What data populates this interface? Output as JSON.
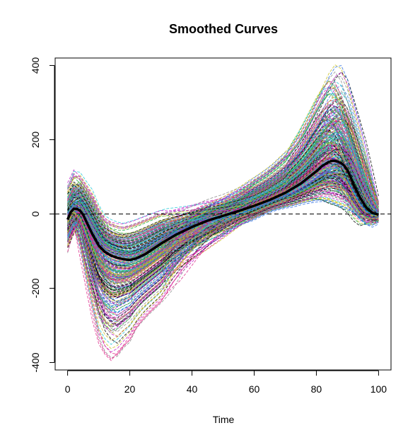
{
  "chart_data": {
    "type": "line",
    "title": "Smoothed Curves",
    "xlabel": "Time",
    "ylabel": "",
    "xlim": [
      -4,
      104
    ],
    "ylim": [
      -420,
      420
    ],
    "x_ticks": [
      0,
      20,
      40,
      60,
      80,
      100
    ],
    "x_tick_labels": [
      "0",
      "20",
      "40",
      "60",
      "80",
      "100"
    ],
    "y_ticks": [
      -400,
      -200,
      0,
      200,
      400
    ],
    "y_tick_labels": [
      "-400",
      "-200",
      "0",
      "200",
      "400"
    ],
    "grid": false,
    "legend": "none",
    "reference_line": {
      "y": 0,
      "style": "dashed",
      "color": "#000000"
    },
    "mean_curve": {
      "name": "mean",
      "color": "#000000",
      "x": [
        0,
        1,
        2,
        3,
        4,
        5,
        6,
        8,
        10,
        12,
        14,
        16,
        18,
        20,
        22,
        25,
        30,
        35,
        40,
        45,
        50,
        55,
        60,
        65,
        70,
        75,
        80,
        82,
        84,
        85,
        86,
        87,
        88,
        89,
        90,
        91,
        92,
        94,
        96,
        98,
        100
      ],
      "y": [
        -15,
        5,
        14,
        14,
        9,
        -2,
        -20,
        -55,
        -85,
        -102,
        -112,
        -118,
        -122,
        -124,
        -120,
        -108,
        -80,
        -55,
        -35,
        -18,
        -5,
        8,
        22,
        38,
        57,
        82,
        115,
        130,
        140,
        143,
        143,
        141,
        137,
        130,
        118,
        100,
        78,
        45,
        18,
        3,
        -2
      ]
    },
    "sample_curve_count": 360,
    "sample_curves_style": "dashed, multicolored",
    "sample_curve_colors": [
      "#000000",
      "#dd2a8a",
      "#22aa44",
      "#2f6fe0",
      "#22c8d8",
      "#c020c8",
      "#c8c020",
      "#8a8a8a"
    ],
    "sample_envelope": {
      "x": [
        0,
        2,
        3,
        5,
        8,
        10,
        12,
        15,
        18,
        20,
        22,
        25,
        30,
        35,
        40,
        45,
        50,
        55,
        60,
        65,
        70,
        75,
        80,
        83,
        85,
        86,
        88,
        90,
        92,
        94,
        96,
        98,
        100
      ],
      "lower": [
        -105,
        -40,
        -30,
        -120,
        -250,
        -330,
        -370,
        -395,
        -360,
        -345,
        -310,
        -280,
        -240,
        -195,
        -160,
        -120,
        -80,
        -40,
        -15,
        5,
        15,
        25,
        30,
        25,
        15,
        10,
        5,
        0,
        -10,
        -30,
        -40,
        -30,
        -20
      ],
      "upper": [
        70,
        115,
        125,
        100,
        65,
        25,
        -5,
        -20,
        -25,
        -20,
        -15,
        -5,
        10,
        25,
        40,
        55,
        65,
        80,
        100,
        130,
        170,
        230,
        320,
        375,
        400,
        408,
        380,
        320,
        260,
        200,
        120,
        40,
        0
      ]
    }
  }
}
